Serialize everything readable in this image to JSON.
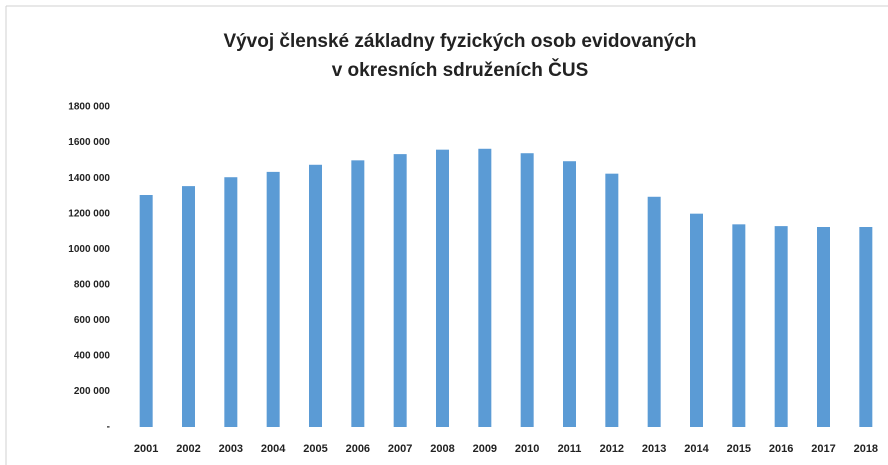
{
  "chart_data": {
    "type": "bar",
    "title": [
      "Vývoj členské základny fyzických osob evidovaných",
      "v okresních sdruženích ČUS"
    ],
    "categories": [
      "2001",
      "2002",
      "2003",
      "2004",
      "2005",
      "2006",
      "2007",
      "2008",
      "2009",
      "2010",
      "2011",
      "2012",
      "2013",
      "2014",
      "2015",
      "2016",
      "2017",
      "2018"
    ],
    "values": [
      1305000,
      1355000,
      1405000,
      1435000,
      1475000,
      1500000,
      1535000,
      1560000,
      1565000,
      1540000,
      1495000,
      1425000,
      1295000,
      1200000,
      1140000,
      1130000,
      1125000,
      1125000
    ],
    "color": "#5b9bd5",
    "ylim": [
      0,
      1800000
    ],
    "yticks": [
      {
        "value": 0,
        "label": "-"
      },
      {
        "value": 200000,
        "label": "200 000"
      },
      {
        "value": 400000,
        "label": "400 000"
      },
      {
        "value": 600000,
        "label": "600 000"
      },
      {
        "value": 800000,
        "label": "800 000"
      },
      {
        "value": 1000000,
        "label": "1000 000"
      },
      {
        "value": 1200000,
        "label": "1200 000"
      },
      {
        "value": 1400000,
        "label": "1400 000"
      },
      {
        "value": 1600000,
        "label": "1600 000"
      },
      {
        "value": 1800000,
        "label": "1800 000"
      }
    ],
    "grid": false
  }
}
